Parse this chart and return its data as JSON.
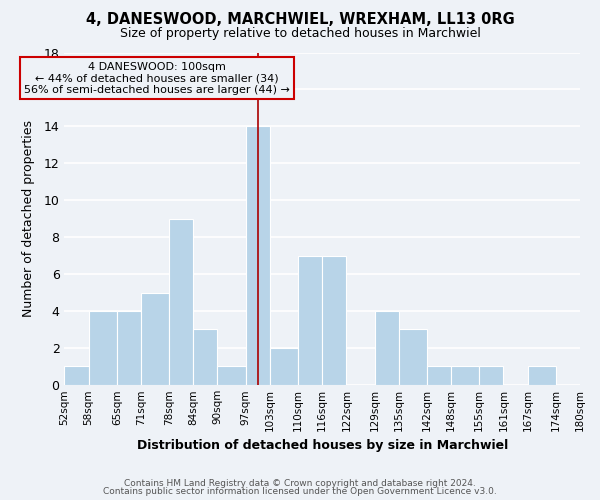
{
  "title": "4, DANESWOOD, MARCHWIEL, WREXHAM, LL13 0RG",
  "subtitle": "Size of property relative to detached houses in Marchwiel",
  "xlabel": "Distribution of detached houses by size in Marchwiel",
  "ylabel": "Number of detached properties",
  "footer_lines": [
    "Contains HM Land Registry data © Crown copyright and database right 2024.",
    "Contains public sector information licensed under the Open Government Licence v3.0."
  ],
  "bin_labels": [
    "52sqm",
    "58sqm",
    "65sqm",
    "71sqm",
    "78sqm",
    "84sqm",
    "90sqm",
    "97sqm",
    "103sqm",
    "110sqm",
    "116sqm",
    "122sqm",
    "129sqm",
    "135sqm",
    "142sqm",
    "148sqm",
    "155sqm",
    "161sqm",
    "167sqm",
    "174sqm",
    "180sqm"
  ],
  "bar_values": [
    1,
    4,
    4,
    5,
    9,
    3,
    1,
    14,
    2,
    7,
    7,
    0,
    4,
    3,
    1,
    1,
    1,
    0,
    1,
    0
  ],
  "bar_color": "#b8d4e8",
  "bar_edge_color": "#ffffff",
  "property_line_x": 100,
  "property_line_color": "#aa0000",
  "annotation_title": "4 DANESWOOD: 100sqm",
  "annotation_line1": "← 44% of detached houses are smaller (34)",
  "annotation_line2": "56% of semi-detached houses are larger (44) →",
  "annotation_box_edge": "#cc0000",
  "ylim": [
    0,
    18
  ],
  "yticks": [
    0,
    2,
    4,
    6,
    8,
    10,
    12,
    14,
    16,
    18
  ],
  "bg_color": "#eef2f7",
  "grid_color": "#ffffff",
  "bin_edges_left": [
    52,
    58,
    65,
    71,
    78,
    84,
    90,
    97,
    103,
    110,
    116,
    122,
    129,
    135,
    142,
    148,
    155,
    161,
    167,
    174
  ],
  "bin_edges_right": [
    58,
    65,
    71,
    78,
    84,
    90,
    97,
    103,
    110,
    116,
    122,
    129,
    135,
    142,
    148,
    155,
    161,
    167,
    174,
    180
  ]
}
